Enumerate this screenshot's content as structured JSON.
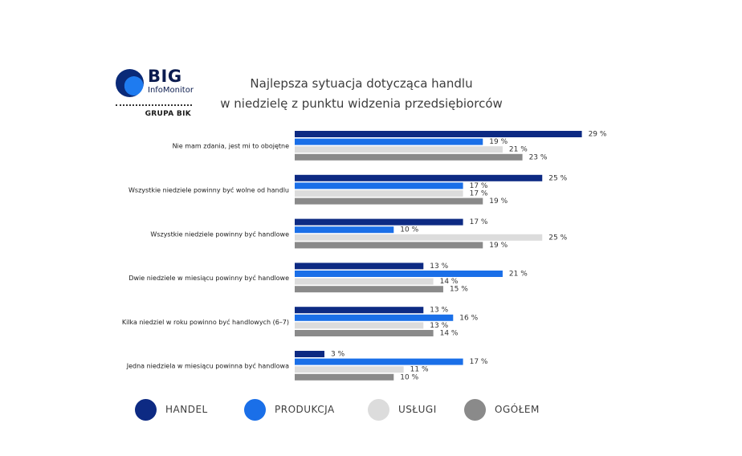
{
  "logo": {
    "brand": "BIG",
    "subtitle": "InfoMonitor",
    "group": "GRUPA BIK"
  },
  "title_lines": [
    "Najlepsza sytuacja dotycząca handlu",
    "w niedzielę z punktu widzenia przedsiębiorców"
  ],
  "colors": {
    "handel": "#0d2a83",
    "produkcja": "#1a6fe8",
    "uslugi": "#dcdcdc",
    "ogolem": "#8a8a8a"
  },
  "chart_data": {
    "type": "bar",
    "orientation": "horizontal",
    "title": "Najlepsza sytuacja dotycząca handlu w niedzielę z punktu widzenia przedsiębiorców",
    "value_suffix": " %",
    "xlim": [
      0,
      30
    ],
    "grid": false,
    "legend_position": "bottom",
    "categories": [
      "Nie mam zdania, jest mi to obojętne",
      "Wszystkie niedziele powinny być wolne od handlu",
      "Wszystkie niedziele powinny być handlowe",
      "Dwie niedziele w miesiącu powinny być handlowe",
      "Kilka niedziel w roku powinno być handlowych (6–7)",
      "Jedna niedziela w miesiącu powinna być handlowa"
    ],
    "series": [
      {
        "name": "HANDEL",
        "color": "#0d2a83",
        "values": [
          29,
          25,
          17,
          13,
          13,
          3
        ]
      },
      {
        "name": "PRODUKCJA",
        "color": "#1a6fe8",
        "values": [
          19,
          17,
          10,
          21,
          16,
          17
        ]
      },
      {
        "name": "USŁUGI",
        "color": "#dcdcdc",
        "values": [
          21,
          17,
          25,
          14,
          13,
          11
        ]
      },
      {
        "name": "OGÓŁEM",
        "color": "#8a8a8a",
        "values": [
          23,
          19,
          19,
          15,
          14,
          10
        ]
      }
    ]
  }
}
